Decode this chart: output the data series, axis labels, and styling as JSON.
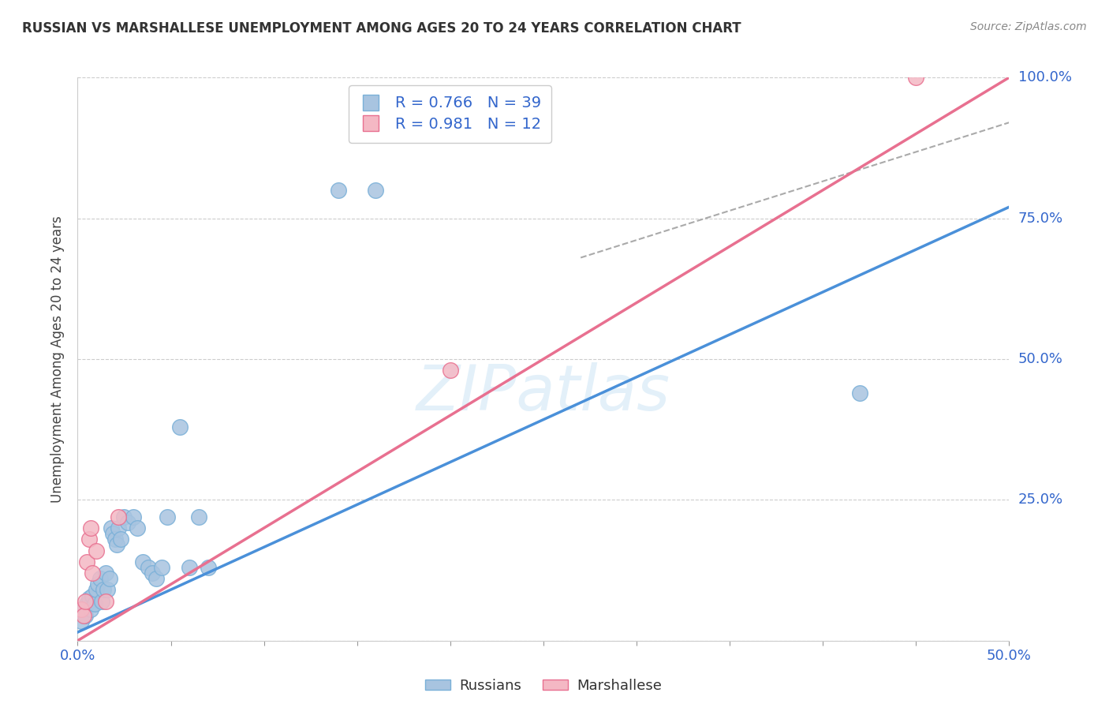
{
  "title": "RUSSIAN VS MARSHALLESE UNEMPLOYMENT AMONG AGES 20 TO 24 YEARS CORRELATION CHART",
  "source": "Source: ZipAtlas.com",
  "ylabel": "Unemployment Among Ages 20 to 24 years",
  "xlim": [
    0,
    0.5
  ],
  "ylim": [
    0,
    1.0
  ],
  "xticks": [
    0.0,
    0.05,
    0.1,
    0.15,
    0.2,
    0.25,
    0.3,
    0.35,
    0.4,
    0.45,
    0.5
  ],
  "xticklabels": [
    "0.0%",
    "",
    "",
    "",
    "",
    "",
    "",
    "",
    "",
    "",
    "50.0%"
  ],
  "yticks": [
    0.0,
    0.25,
    0.5,
    0.75,
    1.0
  ],
  "yticklabels_right": [
    "",
    "25.0%",
    "50.0%",
    "75.0%",
    "100.0%"
  ],
  "legend_R_russian": "0.766",
  "legend_N_russian": "39",
  "legend_R_marshallese": "0.981",
  "legend_N_marshallese": "12",
  "russian_color": "#a8c4e0",
  "marshallese_color": "#f4b8c4",
  "russian_line_color": "#4a90d9",
  "marshallese_line_color": "#e87090",
  "watermark": "ZIPatlas",
  "background_color": "#ffffff",
  "russian_points": [
    [
      0.002,
      0.035
    ],
    [
      0.003,
      0.055
    ],
    [
      0.004,
      0.045
    ],
    [
      0.005,
      0.065
    ],
    [
      0.006,
      0.075
    ],
    [
      0.007,
      0.055
    ],
    [
      0.008,
      0.08
    ],
    [
      0.009,
      0.065
    ],
    [
      0.01,
      0.09
    ],
    [
      0.011,
      0.1
    ],
    [
      0.012,
      0.11
    ],
    [
      0.013,
      0.07
    ],
    [
      0.014,
      0.09
    ],
    [
      0.015,
      0.12
    ],
    [
      0.016,
      0.09
    ],
    [
      0.017,
      0.11
    ],
    [
      0.018,
      0.2
    ],
    [
      0.019,
      0.19
    ],
    [
      0.02,
      0.18
    ],
    [
      0.021,
      0.17
    ],
    [
      0.022,
      0.2
    ],
    [
      0.023,
      0.18
    ],
    [
      0.025,
      0.22
    ],
    [
      0.027,
      0.21
    ],
    [
      0.03,
      0.22
    ],
    [
      0.032,
      0.2
    ],
    [
      0.035,
      0.14
    ],
    [
      0.038,
      0.13
    ],
    [
      0.04,
      0.12
    ],
    [
      0.042,
      0.11
    ],
    [
      0.045,
      0.13
    ],
    [
      0.048,
      0.22
    ],
    [
      0.055,
      0.38
    ],
    [
      0.06,
      0.13
    ],
    [
      0.065,
      0.22
    ],
    [
      0.07,
      0.13
    ],
    [
      0.14,
      0.8
    ],
    [
      0.16,
      0.8
    ],
    [
      0.42,
      0.44
    ]
  ],
  "marshallese_points": [
    [
      0.002,
      0.055
    ],
    [
      0.003,
      0.045
    ],
    [
      0.004,
      0.07
    ],
    [
      0.005,
      0.14
    ],
    [
      0.006,
      0.18
    ],
    [
      0.007,
      0.2
    ],
    [
      0.008,
      0.12
    ],
    [
      0.01,
      0.16
    ],
    [
      0.015,
      0.07
    ],
    [
      0.2,
      0.48
    ],
    [
      0.45,
      1.0
    ],
    [
      0.022,
      0.22
    ]
  ],
  "russian_reg_line": [
    [
      0,
      0.015
    ],
    [
      0.5,
      0.77
    ]
  ],
  "marshallese_reg_line": [
    [
      0,
      0.0
    ],
    [
      0.5,
      1.0
    ]
  ],
  "diagonal_line": [
    [
      0.27,
      0.68
    ],
    [
      0.5,
      0.92
    ]
  ]
}
